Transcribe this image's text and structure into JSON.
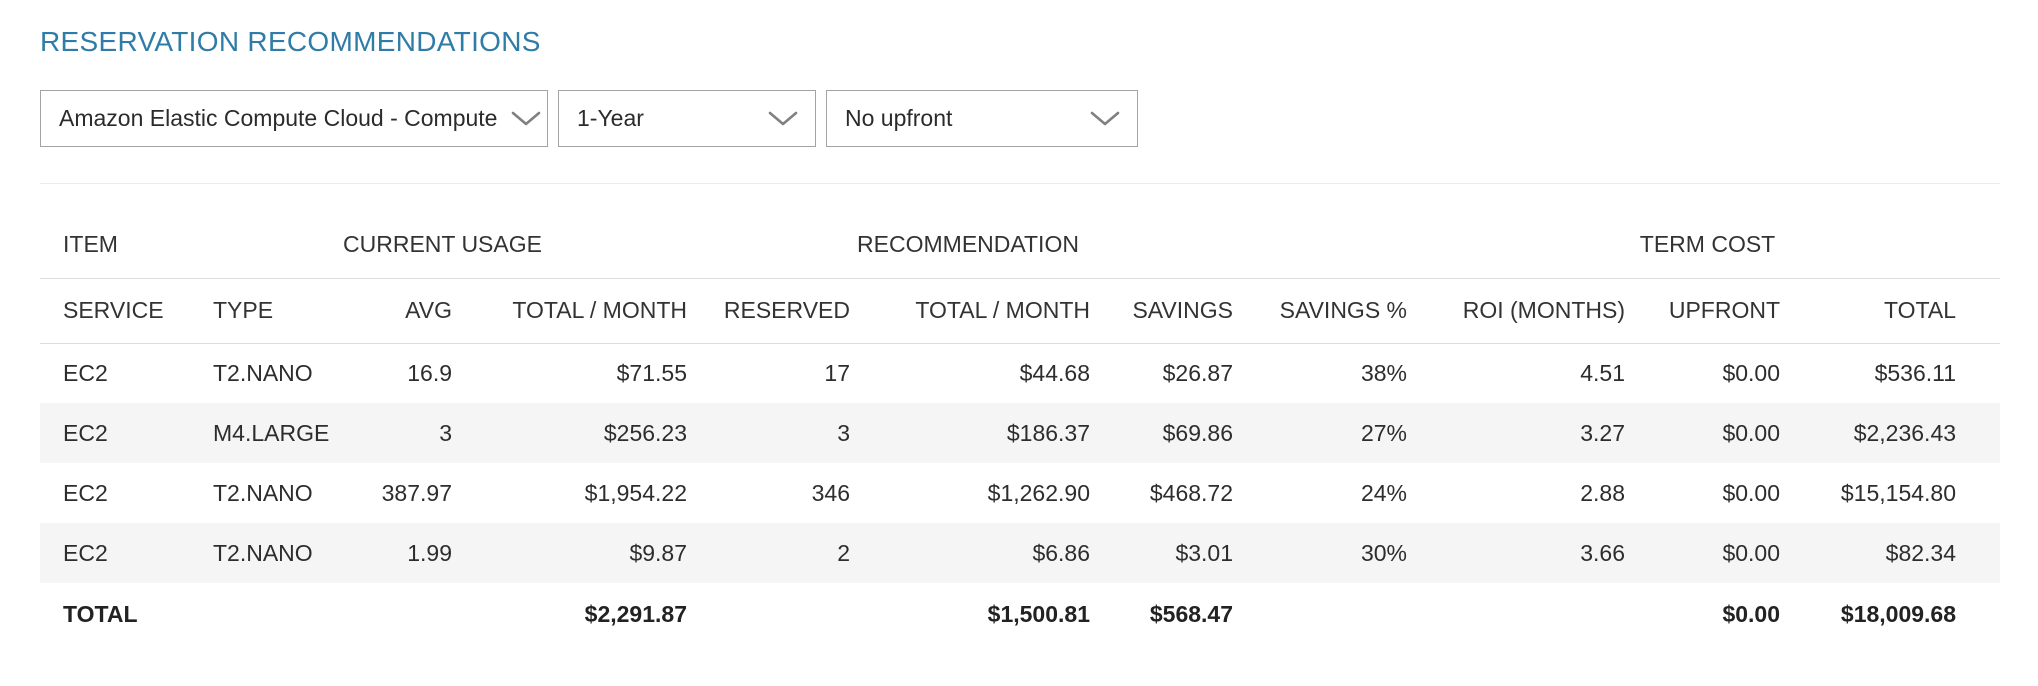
{
  "title": "RESERVATION RECOMMENDATIONS",
  "filters": {
    "service": {
      "value": "Amazon Elastic Compute Cloud - Compute"
    },
    "term": {
      "value": "1-Year"
    },
    "payment": {
      "value": "No upfront"
    }
  },
  "table": {
    "group_headers": [
      "ITEM",
      "CURRENT USAGE",
      "RECOMMENDATION",
      "",
      "TERM COST"
    ],
    "columns": [
      "SERVICE",
      "TYPE",
      "AVG",
      "TOTAL / MONTH",
      "RESERVED",
      "TOTAL / MONTH",
      "SAVINGS",
      "SAVINGS %",
      "ROI (MONTHS)",
      "UPFRONT",
      "TOTAL"
    ],
    "rows": [
      [
        "EC2",
        "T2.NANO",
        "16.9",
        "$71.55",
        "17",
        "$44.68",
        "$26.87",
        "38%",
        "4.51",
        "$0.00",
        "$536.11"
      ],
      [
        "EC2",
        "M4.LARGE",
        "3",
        "$256.23",
        "3",
        "$186.37",
        "$69.86",
        "27%",
        "3.27",
        "$0.00",
        "$2,236.43"
      ],
      [
        "EC2",
        "T2.NANO",
        "387.97",
        "$1,954.22",
        "346",
        "$1,262.90",
        "$468.72",
        "24%",
        "2.88",
        "$0.00",
        "$15,154.80"
      ],
      [
        "EC2",
        "T2.NANO",
        "1.99",
        "$9.87",
        "2",
        "$6.86",
        "$3.01",
        "30%",
        "3.66",
        "$0.00",
        "$82.34"
      ]
    ],
    "total_row": [
      "TOTAL",
      "",
      "",
      "$2,291.87",
      "",
      "$1,500.81",
      "$568.47",
      "",
      "",
      "$0.00",
      "$18,009.68"
    ]
  },
  "colors": {
    "title_accent": "#2e7ca7",
    "row_stripe": "#f5f5f6",
    "header_rule": "#dcdcdc",
    "dropdown_border": "#a3a3a3"
  }
}
